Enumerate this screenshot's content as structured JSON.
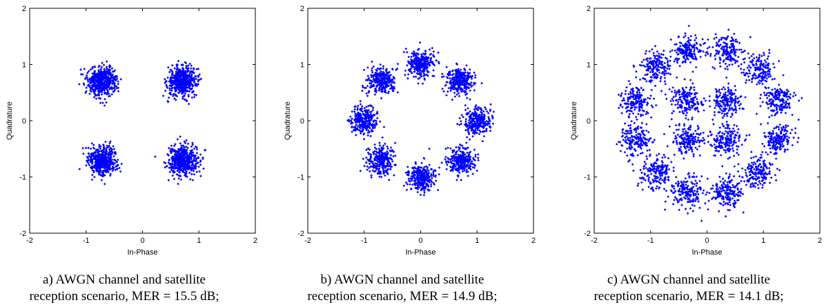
{
  "chart_data": [
    {
      "type": "scatter",
      "title": "",
      "xlabel": "In-Phase",
      "ylabel": "Quadrature",
      "xlim": [
        -2,
        2
      ],
      "ylim": [
        -2,
        2
      ],
      "xticks": [
        "-2",
        "-1",
        "0",
        "1",
        "2"
      ],
      "yticks": [
        "-2",
        "-1",
        "0",
        "1",
        "2"
      ],
      "grid": false,
      "marker_color": "#0000ff",
      "constellation": "QPSK",
      "noise_sigma": 0.13,
      "series": [
        {
          "values": [
            [
              0.707,
              0.707
            ],
            [
              -0.707,
              0.707
            ],
            [
              -0.707,
              -0.707
            ],
            [
              0.707,
              -0.707
            ]
          ]
        }
      ],
      "caption": [
        "a) AWGN channel and satellite",
        "reception scenario, MER = 15.5 dB;"
      ]
    },
    {
      "type": "scatter",
      "title": "",
      "xlabel": "In-Phase",
      "ylabel": "Quadrature",
      "xlim": [
        -2,
        2
      ],
      "ylim": [
        -2,
        2
      ],
      "xticks": [
        "-2",
        "-1",
        "0",
        "1",
        "2"
      ],
      "yticks": [
        "-2",
        "-1",
        "0",
        "1",
        "2"
      ],
      "grid": false,
      "marker_color": "#0000ff",
      "constellation": "8PSK",
      "noise_sigma": 0.12,
      "series": [
        {
          "values": [
            [
              1.0,
              0.0
            ],
            [
              0.707,
              0.707
            ],
            [
              0.0,
              1.0
            ],
            [
              -0.707,
              0.707
            ],
            [
              -1.0,
              0.0
            ],
            [
              -0.707,
              -0.707
            ],
            [
              0.0,
              -1.0
            ],
            [
              0.707,
              -0.707
            ]
          ]
        }
      ],
      "caption": [
        "b) AWGN channel and satellite",
        "reception scenario, MER = 14.9 dB;"
      ]
    },
    {
      "type": "scatter",
      "title": "",
      "xlabel": "In-Phase",
      "ylabel": "Quadrature",
      "xlim": [
        -2,
        2
      ],
      "ylim": [
        -2,
        2
      ],
      "xticks": [
        "-2",
        "-1",
        "0",
        "1",
        "2"
      ],
      "yticks": [
        "-2",
        "-1",
        "0",
        "1",
        "2"
      ],
      "grid": false,
      "marker_color": "#0000ff",
      "constellation": "16APSK",
      "noise_sigma": 0.14,
      "series": [
        {
          "values": [
            [
              0.35,
              0.35
            ],
            [
              -0.35,
              0.35
            ],
            [
              -0.35,
              -0.35
            ],
            [
              0.35,
              -0.35
            ],
            [
              1.26,
              0.34
            ],
            [
              0.92,
              0.92
            ],
            [
              0.34,
              1.26
            ],
            [
              -0.34,
              1.26
            ],
            [
              -0.92,
              0.92
            ],
            [
              -1.26,
              0.34
            ],
            [
              -1.26,
              -0.34
            ],
            [
              -0.92,
              -0.92
            ],
            [
              -0.34,
              -1.26
            ],
            [
              0.34,
              -1.26
            ],
            [
              0.92,
              -0.92
            ],
            [
              1.26,
              -0.34
            ]
          ]
        }
      ],
      "caption": [
        "c) AWGN channel and satellite",
        "reception scenario, MER = 14.1 dB;"
      ]
    }
  ]
}
